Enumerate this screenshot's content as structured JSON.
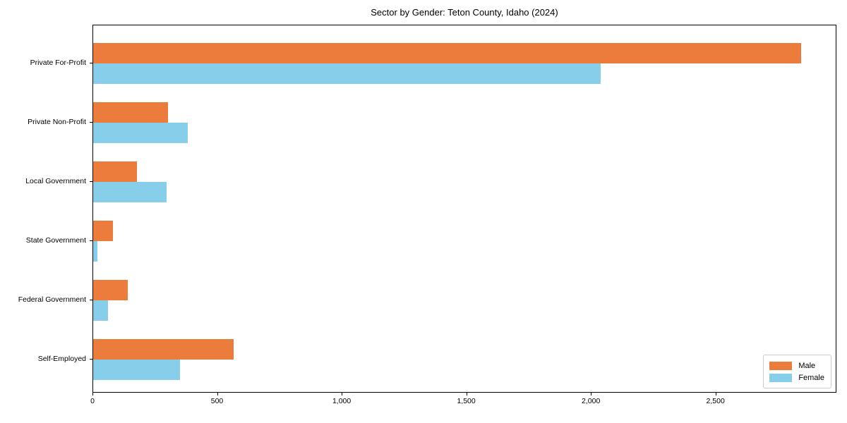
{
  "chart_data": {
    "type": "bar",
    "orientation": "horizontal",
    "title": "Sector by Gender: Teton County, Idaho (2024)",
    "categories": [
      "Private For-Profit",
      "Private Non-Profit",
      "Local Government",
      "State Government",
      "Federal Government",
      "Self-Employed"
    ],
    "series": [
      {
        "name": "Male",
        "color": "#EB7C3C",
        "values": [
          2840,
          300,
          175,
          80,
          138,
          563
        ]
      },
      {
        "name": "Female",
        "color": "#87CEEB",
        "values": [
          2035,
          380,
          295,
          18,
          60,
          348
        ]
      }
    ],
    "xlim": [
      0,
      2985
    ],
    "xticks": [
      0,
      500,
      1000,
      1500,
      2000,
      2500
    ],
    "xtick_labels": [
      "0",
      "500",
      "1,000",
      "1,500",
      "2,000",
      "2,500"
    ],
    "xlabel": "",
    "ylabel": "",
    "grid": false,
    "legend_position": "lower right"
  }
}
